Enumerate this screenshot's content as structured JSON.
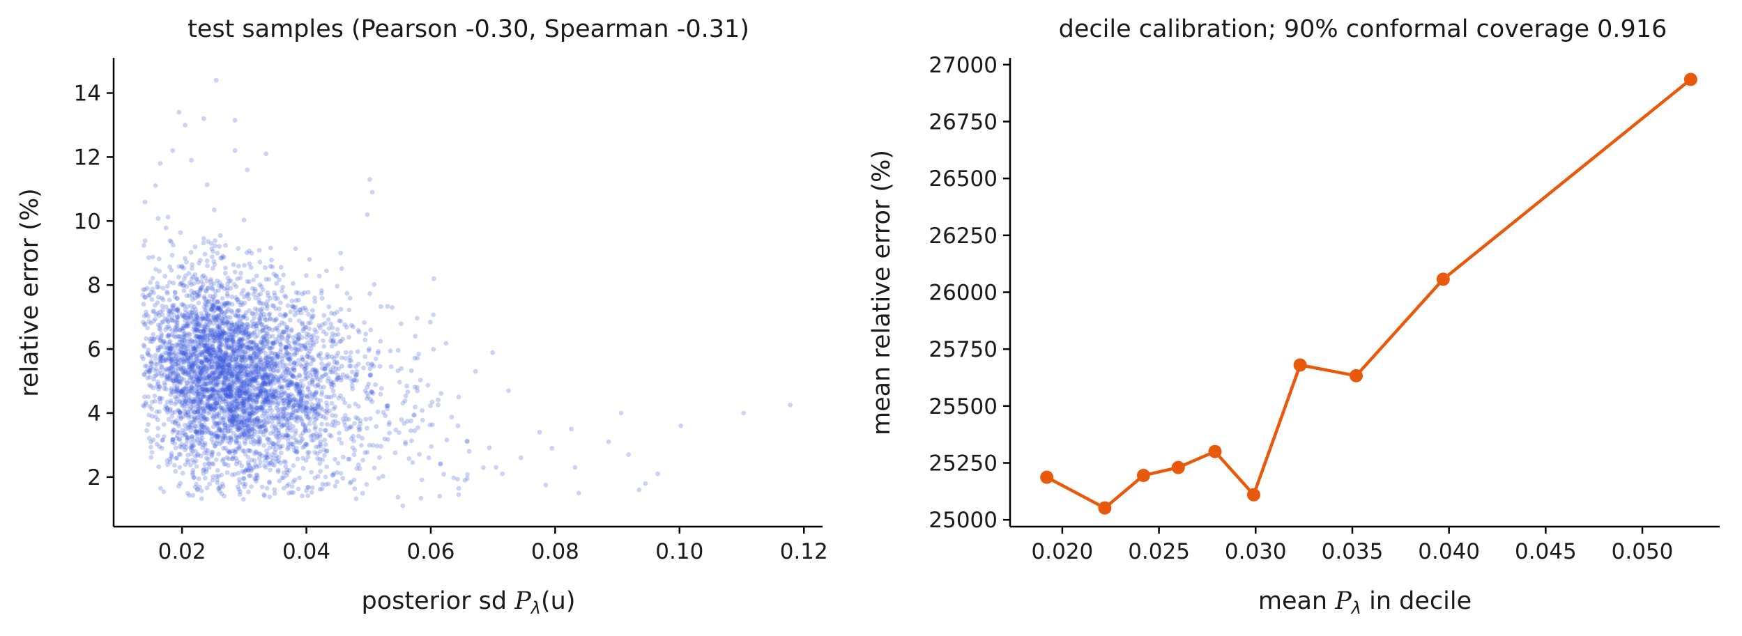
{
  "chart_data": [
    {
      "type": "scatter",
      "title": "test samples (Pearson -0.30, Spearman -0.31)",
      "xlabel_prefix": "posterior sd ",
      "xlabel_math": "P",
      "xlabel_sub": "λ",
      "xlabel_suffix": "(u)",
      "ylabel": "relative error (%)",
      "xlim": [
        0.009,
        0.123
      ],
      "ylim": [
        0.45,
        15.1
      ],
      "xticks": [
        "0.02",
        "0.04",
        "0.06",
        "0.08",
        "0.10",
        "0.12"
      ],
      "yticks": [
        "2",
        "4",
        "6",
        "8",
        "10",
        "12",
        "14"
      ],
      "color": "#3355dd",
      "point_alpha": 0.25,
      "n_points_approx": 4000,
      "cloud": {
        "center_x": 0.027,
        "center_y": 4.5,
        "pearson": -0.3
      },
      "outliers": [
        {
          "x": 0.1178,
          "y": 4.25
        },
        {
          "x": 0.1103,
          "y": 4.0
        },
        {
          "x": 0.1002,
          "y": 3.6
        },
        {
          "x": 0.0965,
          "y": 2.1
        },
        {
          "x": 0.0935,
          "y": 1.6
        },
        {
          "x": 0.0945,
          "y": 1.8
        },
        {
          "x": 0.0906,
          "y": 4.0
        },
        {
          "x": 0.0918,
          "y": 2.7
        },
        {
          "x": 0.0886,
          "y": 3.1
        },
        {
          "x": 0.0838,
          "y": 1.5
        },
        {
          "x": 0.0826,
          "y": 3.5
        },
        {
          "x": 0.0832,
          "y": 2.3
        },
        {
          "x": 0.0785,
          "y": 1.75
        },
        {
          "x": 0.0795,
          "y": 2.9
        },
        {
          "x": 0.0775,
          "y": 3.4
        },
        {
          "x": 0.0745,
          "y": 2.6
        },
        {
          "x": 0.0725,
          "y": 4.7
        },
        {
          "x": 0.0715,
          "y": 2.1
        },
        {
          "x": 0.0672,
          "y": 5.3
        },
        {
          "x": 0.0645,
          "y": 4.5
        },
        {
          "x": 0.0605,
          "y": 8.2
        },
        {
          "x": 0.0538,
          "y": 7.3
        },
        {
          "x": 0.0498,
          "y": 10.2
        },
        {
          "x": 0.0502,
          "y": 11.3
        },
        {
          "x": 0.0255,
          "y": 14.4
        },
        {
          "x": 0.0195,
          "y": 13.4
        },
        {
          "x": 0.0235,
          "y": 13.2
        },
        {
          "x": 0.0285,
          "y": 13.15
        },
        {
          "x": 0.0205,
          "y": 13.0
        },
        {
          "x": 0.0285,
          "y": 12.2
        },
        {
          "x": 0.0335,
          "y": 12.1
        },
        {
          "x": 0.0165,
          "y": 11.8
        },
        {
          "x": 0.0185,
          "y": 12.2
        },
        {
          "x": 0.0215,
          "y": 11.9
        },
        {
          "x": 0.0305,
          "y": 11.6
        },
        {
          "x": 0.0405,
          "y": 8.8
        },
        {
          "x": 0.0455,
          "y": 9.0
        },
        {
          "x": 0.0575,
          "y": 6.4
        },
        {
          "x": 0.0555,
          "y": 1.1
        },
        {
          "x": 0.0615,
          "y": 2.4
        },
        {
          "x": 0.0655,
          "y": 1.9
        },
        {
          "x": 0.0705,
          "y": 2.3
        }
      ]
    },
    {
      "type": "line",
      "title": "decile calibration; 90% conformal coverage 0.916",
      "xlabel_prefix": "mean ",
      "xlabel_math": "P",
      "xlabel_sub": "λ",
      "xlabel_suffix": " in decile",
      "ylabel": "mean relative error (%)",
      "xlim": [
        0.0173,
        0.054
      ],
      "ylim": [
        24970,
        27030
      ],
      "xticks": [
        "0.020",
        "0.025",
        "0.030",
        "0.035",
        "0.040",
        "0.045",
        "0.050"
      ],
      "yticks": [
        "25000",
        "25250",
        "25500",
        "25750",
        "26000",
        "26250",
        "26500",
        "26750",
        "27000"
      ],
      "color": "#e8590c",
      "x": [
        0.0192,
        0.0222,
        0.0242,
        0.026,
        0.0279,
        0.0299,
        0.0323,
        0.0352,
        0.0397,
        0.0525
      ],
      "y": [
        25187,
        25052,
        25195,
        25230,
        25300,
        25110,
        25680,
        25633,
        26057,
        26935
      ]
    }
  ]
}
